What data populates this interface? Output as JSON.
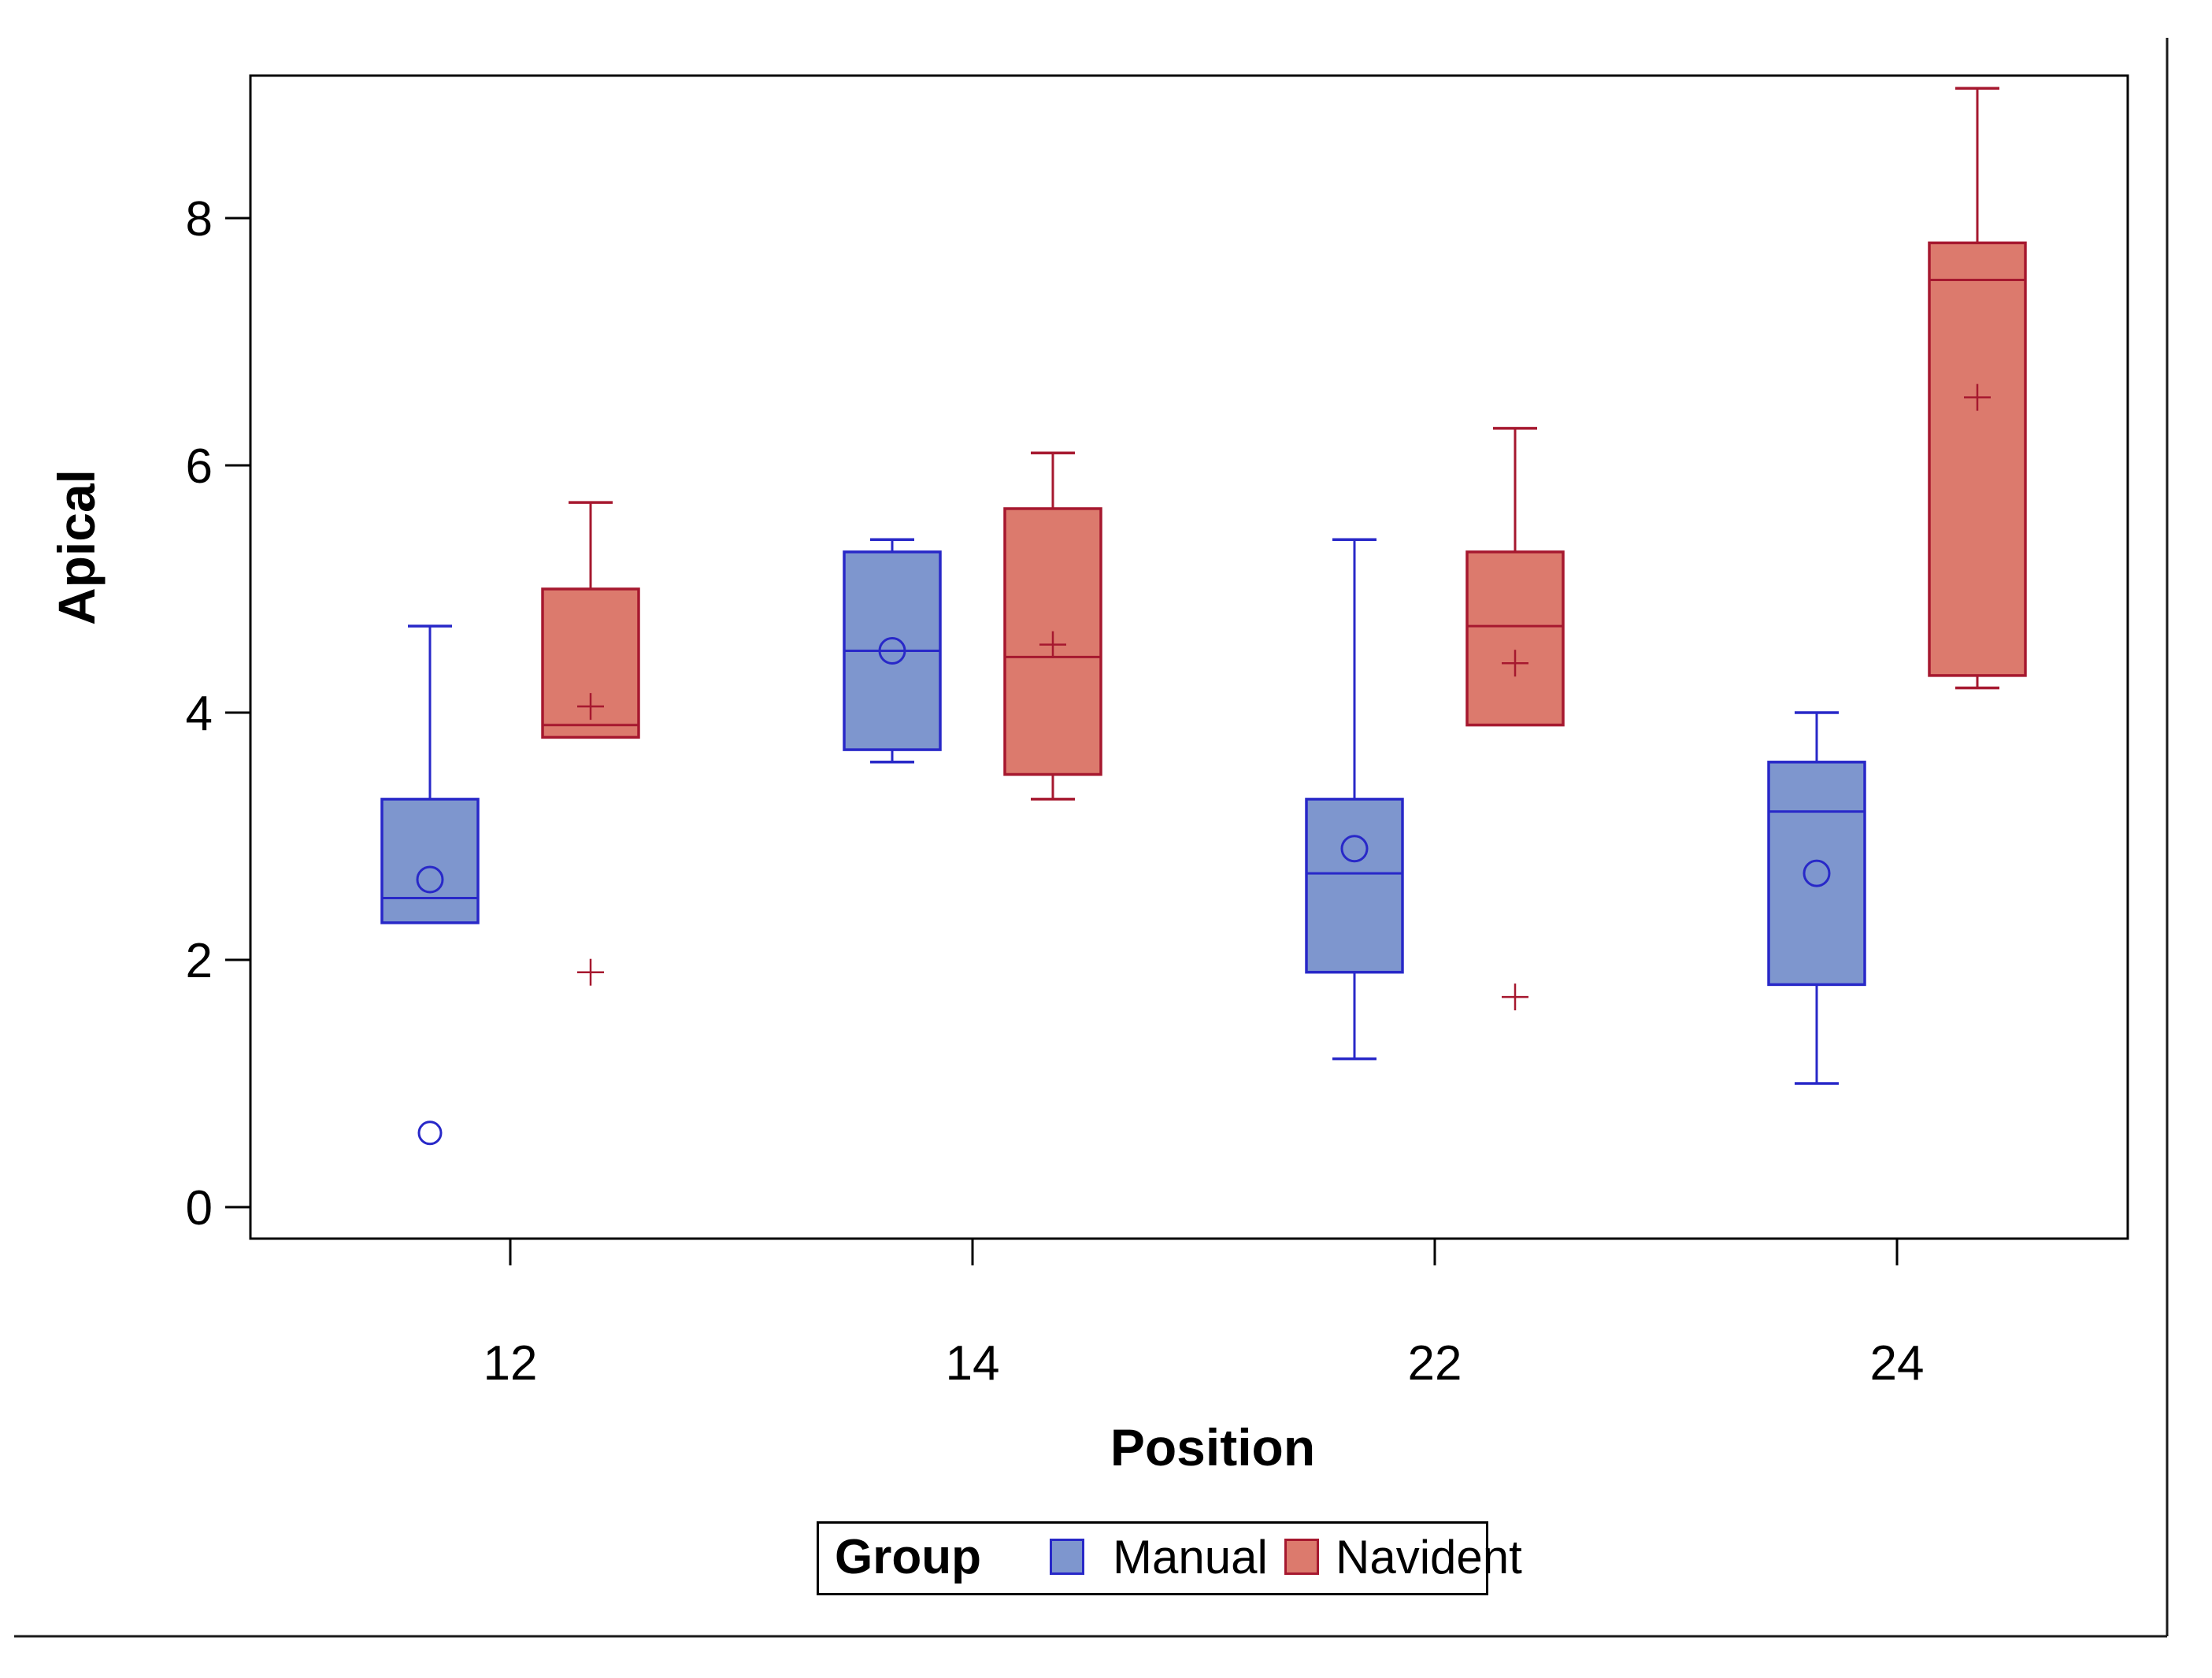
{
  "chart_data": {
    "type": "box",
    "title": "",
    "xlabel": "Position",
    "ylabel": "Apical",
    "categories": [
      "12",
      "14",
      "22",
      "24"
    ],
    "y_ticks": [
      0,
      2,
      4,
      6,
      8
    ],
    "ylim": [
      -0.25,
      9.15
    ],
    "grid": false,
    "legend": {
      "title": "Group",
      "position": "bottom",
      "entries": [
        {
          "label": "Manual",
          "fill": "#7E96CE",
          "stroke": "#2828C8"
        },
        {
          "label": "Navident",
          "fill": "#DC7A6D",
          "stroke": "#A6182F"
        }
      ]
    },
    "series": [
      {
        "name": "Manual",
        "fill": "#7E96CE",
        "stroke": "#2828C8",
        "marker": "circle",
        "boxes": [
          {
            "category": "12",
            "whisker_low": 2.3,
            "q1": 2.3,
            "median": 2.5,
            "q3": 3.3,
            "whisker_high": 4.7,
            "mean": 2.65,
            "outliers": [
              0.6
            ]
          },
          {
            "category": "14",
            "whisker_low": 3.6,
            "q1": 3.7,
            "median": 4.5,
            "q3": 5.3,
            "whisker_high": 5.4,
            "mean": 4.5,
            "outliers": []
          },
          {
            "category": "22",
            "whisker_low": 1.2,
            "q1": 1.9,
            "median": 2.7,
            "q3": 3.3,
            "whisker_high": 5.4,
            "mean": 2.9,
            "outliers": []
          },
          {
            "category": "24",
            "whisker_low": 1.0,
            "q1": 1.8,
            "median": 3.2,
            "q3": 3.6,
            "whisker_high": 4.0,
            "mean": 2.7,
            "outliers": []
          }
        ]
      },
      {
        "name": "Navident",
        "fill": "#DC7A6D",
        "stroke": "#A6182F",
        "marker": "plus",
        "boxes": [
          {
            "category": "12",
            "whisker_low": 3.8,
            "q1": 3.8,
            "median": 3.9,
            "q3": 5.0,
            "whisker_high": 5.7,
            "mean": 4.05,
            "outliers": [
              1.9
            ]
          },
          {
            "category": "14",
            "whisker_low": 3.3,
            "q1": 3.5,
            "median": 4.45,
            "q3": 5.65,
            "whisker_high": 6.1,
            "mean": 4.55,
            "outliers": []
          },
          {
            "category": "22",
            "whisker_low": 3.9,
            "q1": 3.9,
            "median": 4.7,
            "q3": 5.3,
            "whisker_high": 6.3,
            "mean": 4.4,
            "outliers": [
              1.7
            ]
          },
          {
            "category": "24",
            "whisker_low": 4.2,
            "q1": 4.3,
            "median": 7.5,
            "q3": 7.8,
            "whisker_high": 9.05,
            "mean": 6.55,
            "outliers": []
          }
        ]
      }
    ]
  }
}
